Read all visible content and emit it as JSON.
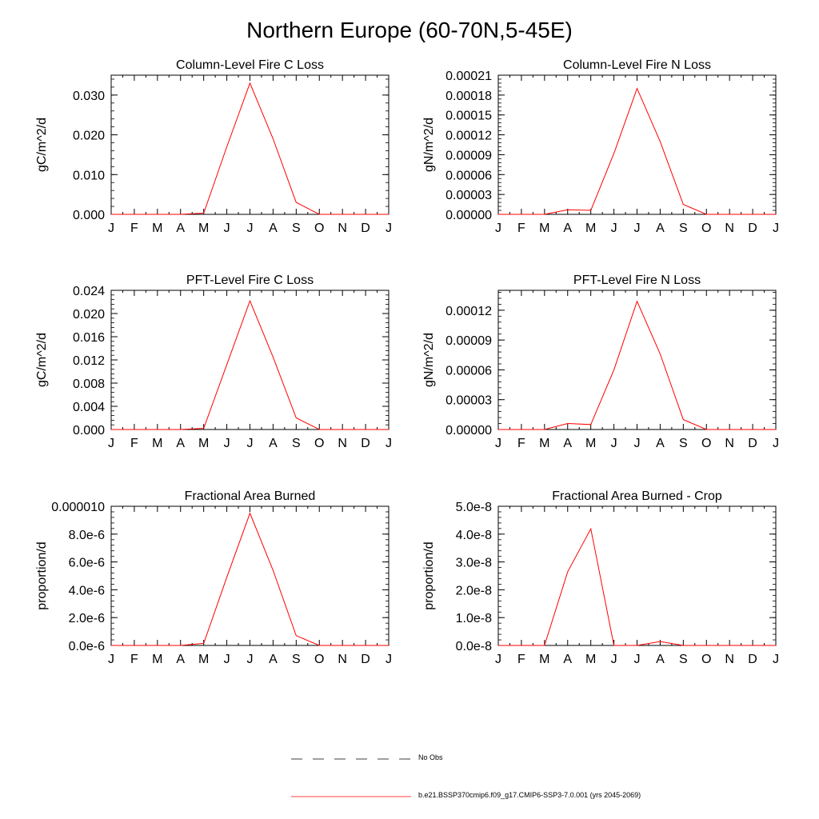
{
  "page": {
    "title": "Northern Europe (60-70N,5-45E)"
  },
  "chart_data": [
    {
      "type": "line",
      "title": "Column-Level Fire C Loss",
      "ylabel": "gC/m^2/d",
      "categories": [
        "J",
        "F",
        "M",
        "A",
        "M",
        "J",
        "J",
        "A",
        "S",
        "O",
        "N",
        "D",
        "J"
      ],
      "ylim": [
        0,
        0.035
      ],
      "yticks": [
        0,
        0.01,
        0.02,
        0.03
      ],
      "ytick_labels": [
        "0.000",
        "0.010",
        "0.020",
        "0.030"
      ],
      "series": [
        {
          "color": "#ff0000",
          "values": [
            0,
            0,
            0,
            0,
            0.0003,
            0.017,
            0.033,
            0.019,
            0.003,
            0,
            0,
            0,
            0
          ]
        }
      ]
    },
    {
      "type": "line",
      "title": "Column-Level Fire N Loss",
      "ylabel": "gN/m^2/d",
      "categories": [
        "J",
        "F",
        "M",
        "A",
        "M",
        "J",
        "J",
        "A",
        "S",
        "O",
        "N",
        "D",
        "J"
      ],
      "ylim": [
        0,
        0.00021
      ],
      "yticks": [
        0,
        3e-05,
        6e-05,
        9e-05,
        0.00012,
        0.00015,
        0.00018,
        0.00021
      ],
      "ytick_labels": [
        "0.00000",
        "0.00003",
        "0.00006",
        "0.00009",
        "0.00012",
        "0.00015",
        "0.00018",
        "0.00021"
      ],
      "series": [
        {
          "color": "#ff0000",
          "values": [
            0,
            0,
            0,
            7e-06,
            6e-06,
            9.2e-05,
            0.00019,
            0.00011,
            1.5e-05,
            0,
            0,
            0,
            0
          ]
        }
      ]
    },
    {
      "type": "line",
      "title": "PFT-Level Fire C Loss",
      "ylabel": "gC/m^2/d",
      "categories": [
        "J",
        "F",
        "M",
        "A",
        "M",
        "J",
        "J",
        "A",
        "S",
        "O",
        "N",
        "D",
        "J"
      ],
      "ylim": [
        0,
        0.024
      ],
      "yticks": [
        0,
        0.004,
        0.008,
        0.012,
        0.016,
        0.02,
        0.024
      ],
      "ytick_labels": [
        "0.000",
        "0.004",
        "0.008",
        "0.012",
        "0.016",
        "0.020",
        "0.024"
      ],
      "series": [
        {
          "color": "#ff0000",
          "values": [
            0,
            0,
            0,
            0,
            0.0002,
            0.0112,
            0.0222,
            0.0125,
            0.002,
            0,
            0,
            0,
            0
          ]
        }
      ]
    },
    {
      "type": "line",
      "title": "PFT-Level Fire N Loss",
      "ylabel": "gN/m^2/d",
      "categories": [
        "J",
        "F",
        "M",
        "A",
        "M",
        "J",
        "J",
        "A",
        "S",
        "O",
        "N",
        "D",
        "J"
      ],
      "ylim": [
        0,
        0.00014
      ],
      "yticks": [
        0,
        3e-05,
        6e-05,
        9e-05,
        0.00012
      ],
      "ytick_labels": [
        "0.00000",
        "0.00003",
        "0.00006",
        "0.00009",
        "0.00012"
      ],
      "series": [
        {
          "color": "#ff0000",
          "values": [
            0,
            0,
            0,
            6e-06,
            5e-06,
            6e-05,
            0.000129,
            7.6e-05,
            1e-05,
            0,
            0,
            0,
            0
          ]
        }
      ]
    },
    {
      "type": "line",
      "title": "Fractional Area Burned",
      "ylabel": "proportion/d",
      "categories": [
        "J",
        "F",
        "M",
        "A",
        "M",
        "J",
        "J",
        "A",
        "S",
        "O",
        "N",
        "D",
        "J"
      ],
      "ylim": [
        0,
        1e-05
      ],
      "yticks": [
        0,
        2e-06,
        4e-06,
        6e-06,
        8e-06,
        1e-05
      ],
      "ytick_labels": [
        "0.0e-6",
        "2.0e-6",
        "4.0e-6",
        "6.0e-6",
        "8.0e-6",
        "0.000010"
      ],
      "series": [
        {
          "color": "#ff0000",
          "values": [
            0,
            0,
            0,
            0,
            1.5e-07,
            4.9e-06,
            9.5e-06,
            5.4e-06,
            7e-07,
            0,
            0,
            0,
            0
          ]
        }
      ]
    },
    {
      "type": "line",
      "title": "Fractional Area Burned - Crop",
      "ylabel": "proportion/d",
      "categories": [
        "J",
        "F",
        "M",
        "A",
        "M",
        "J",
        "J",
        "A",
        "S",
        "O",
        "N",
        "D",
        "J"
      ],
      "ylim": [
        0,
        5e-08
      ],
      "yticks": [
        0,
        1e-08,
        2e-08,
        3e-08,
        4e-08,
        5e-08
      ],
      "ytick_labels": [
        "0.0e-8",
        "1.0e-8",
        "2.0e-8",
        "3.0e-8",
        "4.0e-8",
        "5.0e-8"
      ],
      "series": [
        {
          "color": "#ff0000",
          "values": [
            0,
            0,
            0,
            2.65e-08,
            4.19e-08,
            0,
            0,
            1.4e-09,
            0,
            0,
            0,
            0,
            0
          ]
        }
      ]
    }
  ],
  "legend": {
    "items": [
      {
        "label": "No Obs",
        "color": "#000000",
        "style": "dashed"
      },
      {
        "label": "b.e21.BSSP370cmip6.f09_g17.CMIP6-SSP3-7.0.001 (yrs 2045-2069)",
        "color": "#ff0000",
        "style": "solid"
      }
    ]
  }
}
